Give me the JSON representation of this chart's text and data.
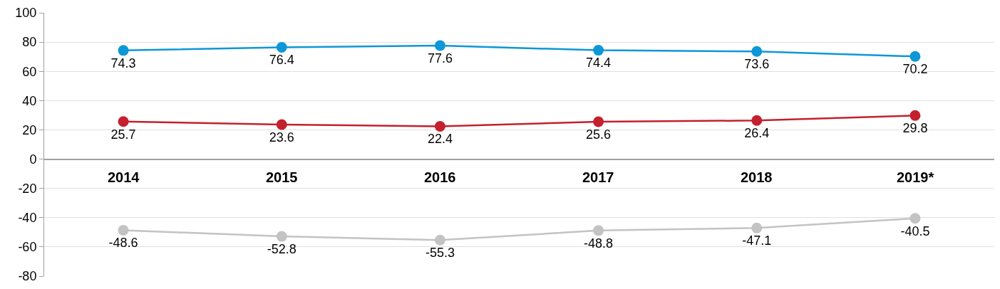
{
  "chart_data": {
    "type": "line",
    "categories": [
      "2014",
      "2015",
      "2016",
      "2017",
      "2018",
      "2019*"
    ],
    "series": [
      {
        "color": "#0e97d6",
        "values": [
          74.3,
          76.4,
          77.6,
          74.4,
          73.6,
          70.2
        ]
      },
      {
        "color": "#c4202d",
        "values": [
          25.7,
          23.6,
          22.4,
          25.6,
          26.4,
          29.8
        ]
      },
      {
        "color": "#c3c3c3",
        "values": [
          -48.6,
          -52.8,
          -55.3,
          -48.8,
          -47.1,
          -40.5
        ]
      }
    ],
    "ylim": [
      -80,
      100
    ],
    "yticks": [
      -80,
      -60,
      -40,
      -20,
      0,
      20,
      40,
      60,
      80,
      100
    ],
    "grid": "y",
    "marker": "circle",
    "line_style": "solid",
    "data_labels": true
  }
}
